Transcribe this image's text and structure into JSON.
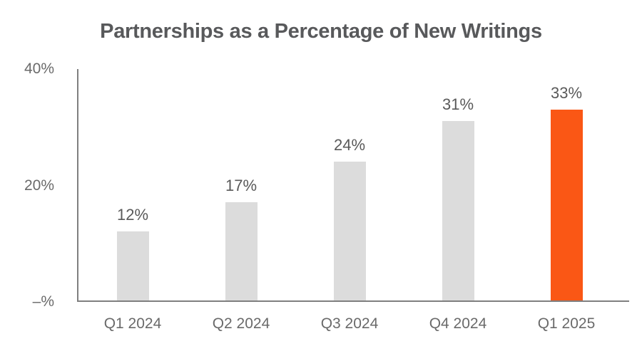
{
  "chart_data": {
    "type": "bar",
    "title": "Partnerships as a Percentage of New Writings",
    "categories": [
      "Q1 2024",
      "Q2 2024",
      "Q3 2024",
      "Q4 2024",
      "Q1 2025"
    ],
    "values": [
      12,
      17,
      24,
      31,
      33
    ],
    "value_labels": [
      "12%",
      "17%",
      "24%",
      "31%",
      "33%"
    ],
    "highlight_index": 4,
    "xlabel": "",
    "ylabel": "",
    "ylim": [
      0,
      40
    ],
    "y_ticks": [
      {
        "value": 40,
        "label": "40%"
      },
      {
        "value": 20,
        "label": "20%"
      },
      {
        "value": 0,
        "label": "–%"
      }
    ],
    "grid": false,
    "legend": null,
    "colors": {
      "bar_default": "#dcdcdc",
      "bar_highlight": "#fa5715",
      "axis": "#7f7f7f",
      "title_text": "#58595b",
      "tick_text": "#6a6a6a",
      "value_text": "#595959"
    }
  }
}
